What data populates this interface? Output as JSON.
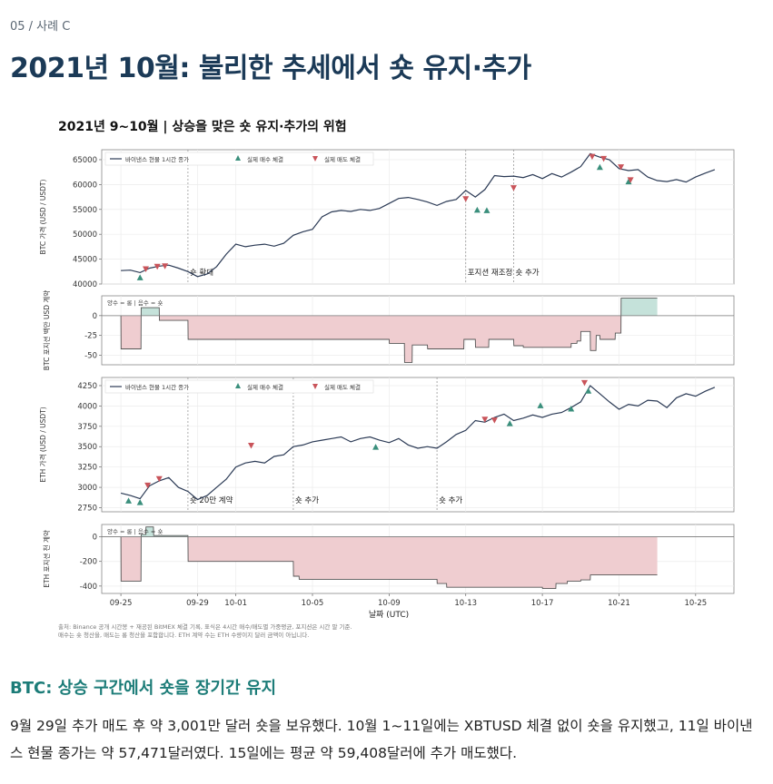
{
  "eyebrow": "05 / 사례 C",
  "title": "2021년 10월: 불리한 추세에서 숏 유지·추가",
  "figure": {
    "title": "2021년 9~10월 | 상승을 맞은 숏 유지·추가의 위험",
    "legend": {
      "price": "바이낸스 현물 1시간 종가",
      "buy": "실제 매수 체결",
      "sell": "실제 매도 체결"
    },
    "pos_note": "양수 = 롱 | 음수 = 숏",
    "xlabel": "날짜 (UTC)",
    "source_line1": "출처: Binance 공개 시간봉 + 재공된 BitMEX 체결 기록, 표식은 4시간 매수/매도별 가중평균, 포지션은 시간 말 기준.",
    "source_line2": "매수는 숏 청산을, 매도는 롱 청산을 포함합니다. ETH 계약 수는 ETH 수량이지 달러 금액이 아닙니다.",
    "x_ticks": [
      "09-25",
      "09-29",
      "10-01",
      "10-05",
      "10-09",
      "10-13",
      "10-17",
      "10-21",
      "10-25"
    ]
  },
  "chart_data": [
    {
      "type": "line",
      "name": "btc-price",
      "ylabel": "BTC 가격 (USD / USDT)",
      "ylim": [
        40000,
        67000
      ],
      "y_ticks": [
        40000,
        45000,
        50000,
        55000,
        60000,
        65000
      ],
      "y_tick_labels": [
        "40000",
        "45000",
        "50000",
        "55000",
        "60000",
        "65000"
      ],
      "x_range_days": [
        0,
        31
      ],
      "series": [
        {
          "x": [
            0.0,
            0.5,
            1.0,
            1.5,
            2.0,
            2.5,
            3.0,
            3.5,
            4.0,
            4.5,
            5.0,
            5.5,
            6.0,
            6.5,
            7.0,
            7.5,
            8.0,
            8.5,
            9.0,
            9.5,
            10.0,
            10.5,
            11.0,
            11.5,
            12.0,
            12.5,
            13.0,
            13.5,
            14.0,
            14.5,
            15.0,
            15.5,
            16.0,
            16.5,
            17.0,
            17.5,
            18.0,
            18.5,
            19.0,
            19.5,
            20.0,
            20.5,
            21.0,
            21.5,
            22.0,
            22.5,
            23.0,
            23.5,
            24.0,
            24.5,
            25.0,
            25.5,
            26.0,
            26.5,
            27.0,
            27.5,
            28.0,
            28.5,
            29.0,
            29.5,
            30.0,
            30.5,
            31.0
          ],
          "y": [
            42700,
            42800,
            42300,
            43200,
            43600,
            43800,
            43200,
            42500,
            41500,
            42000,
            43500,
            46000,
            48000,
            47500,
            47800,
            48000,
            47600,
            48200,
            49800,
            50500,
            51000,
            53500,
            54500,
            54800,
            54600,
            55000,
            54800,
            55200,
            56200,
            57200,
            57400,
            57000,
            56500,
            55800,
            56600,
            57000,
            58800,
            57500,
            59000,
            61800,
            61600,
            61700,
            61400,
            62000,
            61200,
            62200,
            61500,
            62500,
            63600,
            66200,
            65500,
            65000,
            63200,
            62800,
            63000,
            61500,
            60800,
            60600,
            61000,
            60500,
            61500,
            62300,
            63000
          ]
        }
      ],
      "annotations": [
        {
          "x": 3.5,
          "label": "숏 확대"
        },
        {
          "x": 18.0,
          "label": "포지션 재조정"
        },
        {
          "x": 20.5,
          "label": "숏 추가"
        }
      ],
      "buy_markers": [
        [
          1.0,
          41200
        ],
        [
          18.6,
          54800
        ],
        [
          19.1,
          54700
        ],
        [
          25.0,
          63400
        ],
        [
          26.5,
          60500
        ]
      ],
      "sell_markers": [
        [
          1.3,
          43100
        ],
        [
          1.9,
          43600
        ],
        [
          2.3,
          43700
        ],
        [
          18.0,
          57200
        ],
        [
          20.5,
          59400
        ],
        [
          24.6,
          65700
        ],
        [
          25.2,
          65300
        ],
        [
          26.1,
          63600
        ],
        [
          26.6,
          61000
        ]
      ]
    },
    {
      "type": "area",
      "name": "btc-position",
      "ylabel": "BTC 포지션 백만 USD 계약",
      "ylim": [
        -62,
        25
      ],
      "y_ticks": [
        0,
        -25,
        -50
      ],
      "y_tick_labels": [
        "0",
        "-25",
        "-50"
      ],
      "series": [
        {
          "x": [
            0.0,
            0.01,
            1.05,
            1.06,
            2.0,
            2.01,
            3.5,
            3.51,
            14.0,
            14.01,
            14.8,
            14.81,
            15.2,
            15.21,
            16.0,
            16.01,
            17.9,
            17.91,
            18.5,
            18.51,
            19.2,
            19.21,
            20.5,
            20.51,
            21.0,
            21.01,
            23.5,
            23.51,
            23.8,
            23.81,
            24.0,
            24.01,
            24.5,
            24.51,
            24.8,
            24.81,
            25.0,
            25.01,
            25.8,
            25.81,
            26.1,
            26.11,
            26.3,
            26.31,
            28.0
          ],
          "y": [
            0,
            -42,
            -42,
            10,
            10,
            -6,
            -6,
            -30,
            -30,
            -35,
            -35,
            -59,
            -59,
            -37,
            -37,
            -42,
            -42,
            -30,
            -30,
            -40,
            -40,
            -30,
            -30,
            -38,
            -38,
            -40,
            -40,
            -35,
            -35,
            -32,
            -32,
            -20,
            -20,
            -44,
            -44,
            -25,
            -25,
            -30,
            -30,
            -22,
            -22,
            22,
            22,
            22,
            22
          ]
        }
      ]
    },
    {
      "type": "line",
      "name": "eth-price",
      "ylabel": "ETH 가격 (USD / USDT)",
      "ylim": [
        2700,
        4350
      ],
      "y_ticks": [
        2750,
        3000,
        3250,
        3500,
        3750,
        4000,
        4250
      ],
      "y_tick_labels": [
        "2750",
        "3000",
        "3250",
        "3500",
        "3750",
        "4000",
        "4250"
      ],
      "series": [
        {
          "x": [
            0.0,
            0.5,
            1.0,
            1.5,
            2.0,
            2.5,
            3.0,
            3.5,
            4.0,
            4.5,
            5.0,
            5.5,
            6.0,
            6.5,
            7.0,
            7.5,
            8.0,
            8.5,
            9.0,
            9.5,
            10.0,
            10.5,
            11.0,
            11.5,
            12.0,
            12.5,
            13.0,
            13.5,
            14.0,
            14.5,
            15.0,
            15.5,
            16.0,
            16.5,
            17.0,
            17.5,
            18.0,
            18.5,
            19.0,
            19.5,
            20.0,
            20.5,
            21.0,
            21.5,
            22.0,
            22.5,
            23.0,
            23.5,
            24.0,
            24.5,
            25.0,
            25.5,
            26.0,
            26.5,
            27.0,
            27.5,
            28.0,
            28.5,
            29.0,
            29.5,
            30.0,
            30.5,
            31.0
          ],
          "y": [
            2930,
            2900,
            2860,
            3020,
            3080,
            3120,
            3000,
            2950,
            2850,
            2900,
            3000,
            3100,
            3250,
            3300,
            3320,
            3300,
            3380,
            3400,
            3500,
            3520,
            3560,
            3580,
            3600,
            3620,
            3560,
            3600,
            3620,
            3580,
            3550,
            3600,
            3520,
            3480,
            3500,
            3480,
            3560,
            3650,
            3700,
            3820,
            3800,
            3860,
            3900,
            3820,
            3850,
            3890,
            3860,
            3900,
            3920,
            3980,
            4050,
            4250,
            4150,
            4050,
            3960,
            4020,
            4000,
            4070,
            4060,
            3980,
            4100,
            4150,
            4120,
            4180,
            4230
          ]
        }
      ],
      "annotations": [
        {
          "x": 3.5,
          "label": "숏 20만 계약"
        },
        {
          "x": 9.0,
          "label": "숏 추가"
        },
        {
          "x": 16.5,
          "label": "숏 추가"
        }
      ],
      "buy_markers": [
        [
          0.4,
          2830
        ],
        [
          1.0,
          2810
        ],
        [
          13.3,
          3490
        ],
        [
          20.3,
          3780
        ],
        [
          21.9,
          4000
        ],
        [
          23.5,
          3960
        ],
        [
          24.4,
          4180
        ]
      ],
      "sell_markers": [
        [
          1.4,
          3030
        ],
        [
          2.0,
          3110
        ],
        [
          6.8,
          3520
        ],
        [
          19.0,
          3840
        ],
        [
          19.5,
          3830
        ],
        [
          24.2,
          4290
        ]
      ]
    },
    {
      "type": "area",
      "name": "eth-position",
      "ylabel": "ETH 포지션 천 계약",
      "ylim": [
        -460,
        100
      ],
      "y_ticks": [
        0,
        -200,
        -400
      ],
      "y_tick_labels": [
        "0",
        "-200",
        "-400"
      ],
      "series": [
        {
          "x": [
            0.0,
            0.01,
            1.05,
            1.06,
            1.3,
            1.31,
            1.7,
            1.71,
            3.5,
            3.51,
            9.0,
            9.01,
            9.3,
            9.31,
            16.5,
            16.51,
            17.0,
            17.01,
            22.0,
            22.01,
            22.7,
            22.71,
            23.3,
            23.31,
            24.0,
            24.01,
            24.5,
            24.51,
            28.0
          ],
          "y": [
            0,
            -360,
            -360,
            20,
            20,
            80,
            80,
            10,
            10,
            -200,
            -200,
            -320,
            -320,
            -345,
            -345,
            -380,
            -380,
            -410,
            -410,
            -420,
            -420,
            -380,
            -380,
            -360,
            -360,
            -350,
            -350,
            -310,
            -310
          ]
        }
      ]
    }
  ],
  "section": {
    "title": "BTC: 상승 구간에서 숏을 장기간 유지"
  },
  "body": {
    "paragraph": "9월 29일 추가 매도 후 약 3,001만 달러 숏을 보유했다. 10월 1~11일에는 XBTUSD 체결 없이 숏을 유지했고, 11일 바이낸스 현물 종가는 약 57,471달러였다. 15일에는 평균 약 59,408달러에 추가 매도했다."
  },
  "colors": {
    "title": "#1b3a57",
    "section": "#1c7c78",
    "line": "#2b3a55",
    "buy": "#3a8f7c",
    "sell": "#c9545a",
    "short_fill": "#efcdd0",
    "long_fill": "#c5e2da"
  }
}
